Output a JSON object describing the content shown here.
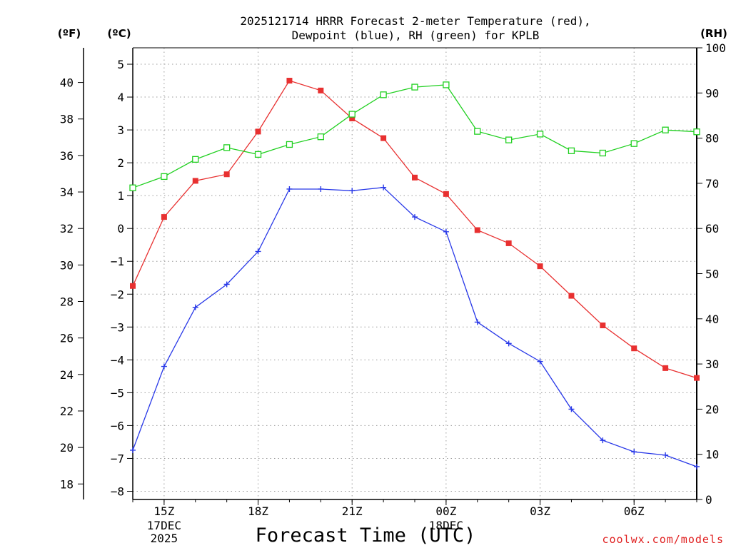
{
  "chart_data": {
    "type": "line",
    "title_line1": "2025121714 HRRR Forecast 2-meter Temperature (red),",
    "title_line2": "Dewpoint (blue), RH (green) for KPLB",
    "xlabel": "Forecast Time (UTC)",
    "watermark": "coolwx.com/models",
    "unit_f": "(ºF)",
    "unit_c": "(ºC)",
    "unit_rh": "(RH)",
    "x_hours": [
      14,
      15,
      16,
      17,
      18,
      19,
      20,
      21,
      22,
      23,
      24,
      25,
      26,
      27,
      28,
      29,
      30,
      31,
      32
    ],
    "x_ticks": [
      {
        "hour": 15,
        "label": "15Z",
        "sub1": "17DEC",
        "sub2": "2025"
      },
      {
        "hour": 18,
        "label": "18Z",
        "sub1": "",
        "sub2": ""
      },
      {
        "hour": 21,
        "label": "21Z",
        "sub1": "",
        "sub2": ""
      },
      {
        "hour": 24,
        "label": "00Z",
        "sub1": "18DEC",
        "sub2": ""
      },
      {
        "hour": 27,
        "label": "03Z",
        "sub1": "",
        "sub2": ""
      },
      {
        "hour": 30,
        "label": "06Z",
        "sub1": "",
        "sub2": ""
      }
    ],
    "xlim": [
      14,
      32
    ],
    "c_ylim": [
      -8.25,
      5.5
    ],
    "c_ticks": [
      -8,
      -7,
      -6,
      -5,
      -4,
      -3,
      -2,
      -1,
      0,
      1,
      2,
      3,
      4,
      5
    ],
    "c_tick_labels": [
      "−8",
      "−7",
      "−6",
      "−5",
      "−4",
      "−3",
      "−2",
      "−1",
      "0",
      "1",
      "2",
      "3",
      "4",
      "5"
    ],
    "f_ticks": [
      18,
      20,
      22,
      24,
      26,
      28,
      30,
      32,
      34,
      36,
      38,
      40
    ],
    "f_tick_labels": [
      "18",
      "20",
      "22",
      "24",
      "26",
      "28",
      "30",
      "32",
      "34",
      "36",
      "38",
      "40"
    ],
    "rh_ylim": [
      0,
      100
    ],
    "rh_ticks": [
      0,
      10,
      20,
      30,
      40,
      50,
      60,
      70,
      80,
      90,
      100
    ],
    "rh_tick_labels": [
      "0",
      "10",
      "20",
      "30",
      "40",
      "50",
      "60",
      "70",
      "80",
      "90",
      "100"
    ],
    "series": [
      {
        "name": "Temperature",
        "unit": "C",
        "color": "#e83030",
        "marker": "filled-square",
        "values": [
          -1.75,
          0.35,
          1.45,
          1.65,
          2.95,
          4.5,
          4.2,
          3.35,
          2.75,
          1.55,
          1.05,
          -0.05,
          -0.45,
          -1.15,
          -2.05,
          -2.95,
          -3.65,
          -4.25,
          -4.55
        ]
      },
      {
        "name": "Dewpoint",
        "unit": "C",
        "color": "#2838e8",
        "marker": "plus",
        "values": [
          -6.75,
          -4.2,
          -2.4,
          -1.7,
          -0.7,
          1.2,
          1.2,
          1.15,
          1.25,
          0.35,
          -0.1,
          -2.85,
          -3.5,
          -4.05,
          -5.5,
          -6.45,
          -6.8,
          -6.9,
          -7.25
        ]
      },
      {
        "name": "RH",
        "unit": "%",
        "color": "#20d020",
        "marker": "open-square",
        "values": [
          69,
          71.5,
          75.3,
          77.9,
          76.4,
          78.6,
          80.3,
          85.3,
          89.6,
          91.3,
          91.8,
          81.5,
          79.6,
          80.9,
          77.2,
          76.7,
          78.8,
          81.8,
          81.4
        ]
      }
    ]
  }
}
